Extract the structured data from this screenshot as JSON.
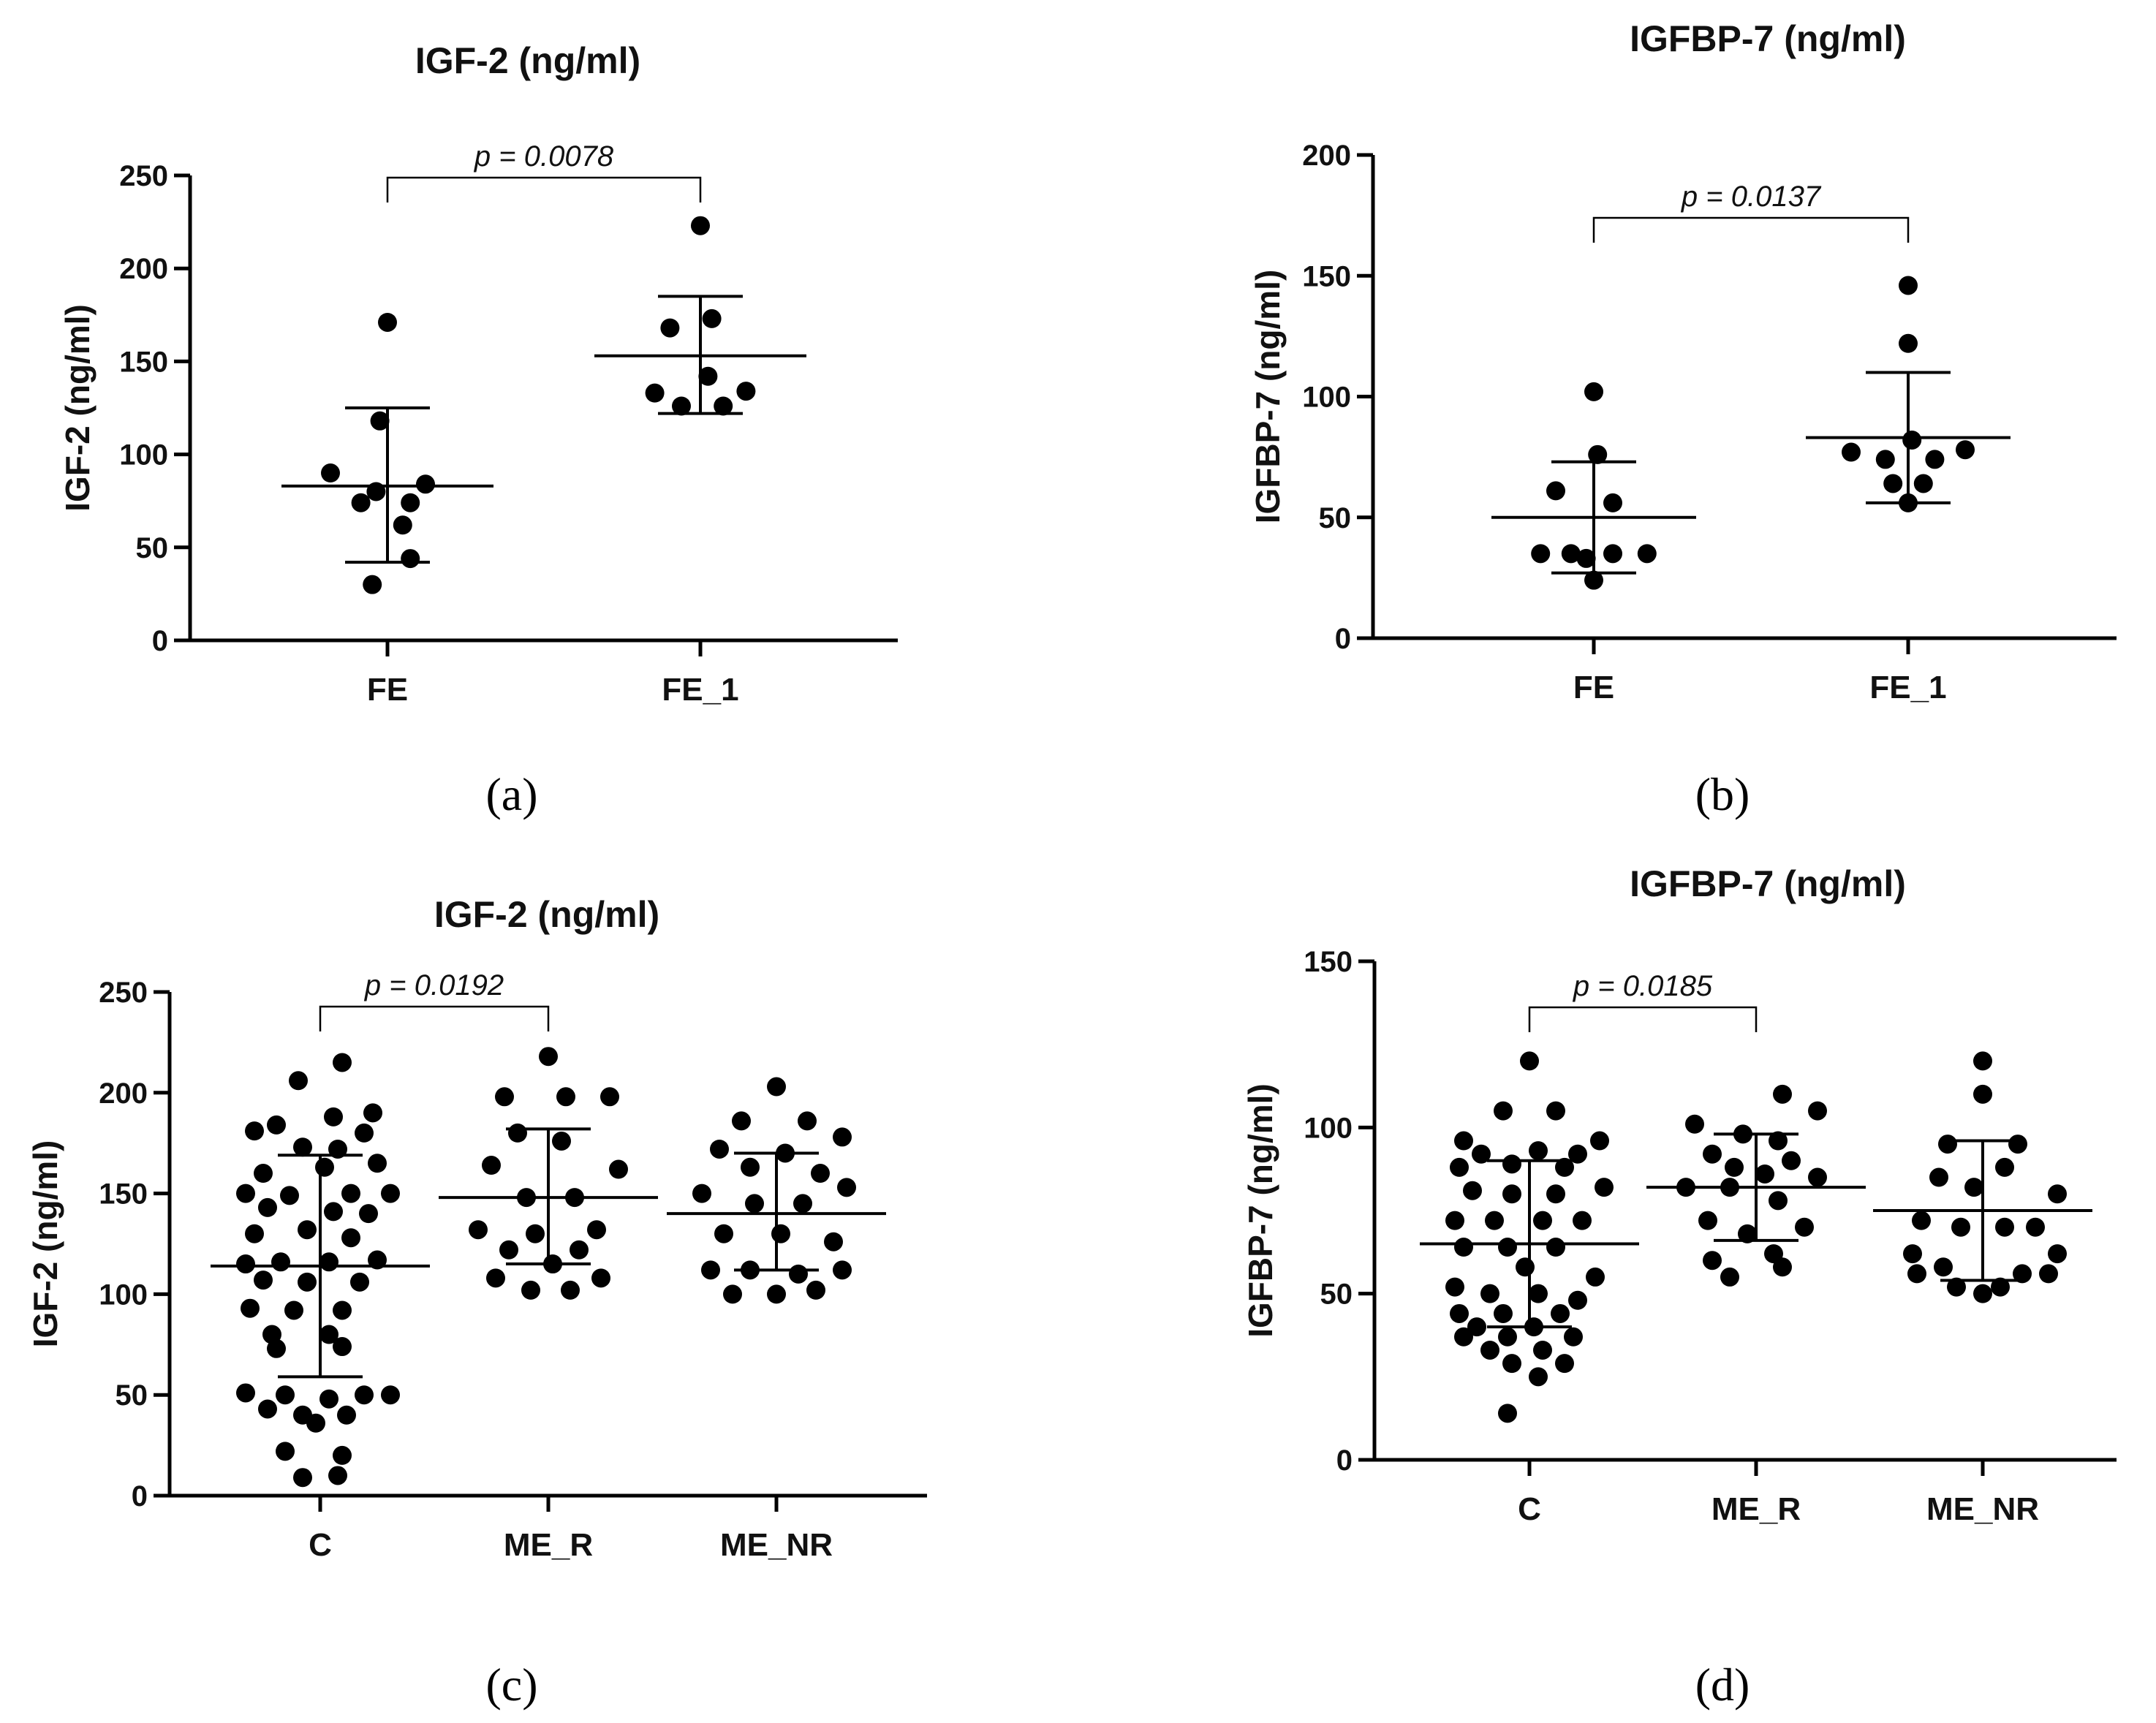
{
  "chart_data": [
    {
      "id": "a",
      "type": "scatter",
      "title": "IGF-2 (ng/ml)",
      "ylabel": "IGF-2 (ng/ml)",
      "caption": "(a)",
      "categories": [
        "FE",
        "FE_1"
      ],
      "ylim": [
        0,
        250
      ],
      "yticks": [
        "0",
        "50",
        "100",
        "150",
        "200",
        "250"
      ],
      "groups": [
        {
          "name": "FE",
          "mean": 83,
          "sd_low": 42,
          "sd_high": 125,
          "points": [
            [
              0,
              171
            ],
            [
              -0.02,
              118
            ],
            [
              -0.15,
              90
            ],
            [
              0.1,
              84
            ],
            [
              -0.03,
              80
            ],
            [
              -0.07,
              74
            ],
            [
              0.06,
              74
            ],
            [
              0.04,
              62
            ],
            [
              0.06,
              44
            ],
            [
              -0.04,
              30
            ]
          ]
        },
        {
          "name": "FE_1",
          "mean": 153,
          "sd_low": 122,
          "sd_high": 185,
          "points": [
            [
              0,
              223
            ],
            [
              0.03,
              173
            ],
            [
              -0.08,
              168
            ],
            [
              0.02,
              142
            ],
            [
              -0.12,
              133
            ],
            [
              0.12,
              134
            ],
            [
              -0.05,
              126
            ],
            [
              0.06,
              126
            ]
          ]
        }
      ],
      "pvalue": {
        "label": "p = 0.0078",
        "between": [
          0,
          1
        ]
      }
    },
    {
      "id": "b",
      "type": "scatter",
      "title": "IGFBP-7 (ng/ml)",
      "ylabel": "IGFBP-7 (ng/ml)",
      "caption": "(b)",
      "categories": [
        "FE",
        "FE_1"
      ],
      "ylim": [
        0,
        200
      ],
      "yticks": [
        "0",
        "50",
        "100",
        "150",
        "200"
      ],
      "groups": [
        {
          "name": "FE",
          "mean": 50,
          "sd_low": 27,
          "sd_high": 73,
          "points": [
            [
              0,
              102
            ],
            [
              0.01,
              76
            ],
            [
              -0.1,
              61
            ],
            [
              0.05,
              56
            ],
            [
              -0.14,
              35
            ],
            [
              -0.06,
              35
            ],
            [
              0.05,
              35
            ],
            [
              0.14,
              35
            ],
            [
              -0.02,
              33
            ],
            [
              0,
              24
            ]
          ]
        },
        {
          "name": "FE_1",
          "mean": 83,
          "sd_low": 56,
          "sd_high": 110,
          "points": [
            [
              0,
              146
            ],
            [
              0,
              122
            ],
            [
              -0.15,
              77
            ],
            [
              0.15,
              78
            ],
            [
              -0.06,
              74
            ],
            [
              0.07,
              74
            ],
            [
              0.01,
              82
            ],
            [
              -0.04,
              64
            ],
            [
              0.04,
              64
            ],
            [
              0,
              56
            ]
          ]
        }
      ],
      "pvalue": {
        "label": "p = 0.0137",
        "between": [
          0,
          1
        ]
      }
    },
    {
      "id": "c",
      "type": "scatter",
      "title": "IGF-2 (ng/ml)",
      "ylabel": "IGF-2 (ng/ml)",
      "caption": "(c)",
      "categories": [
        "C",
        "ME_R",
        "ME_NR"
      ],
      "ylim": [
        0,
        250
      ],
      "yticks": [
        "0",
        "50",
        "100",
        "150",
        "200",
        "250"
      ],
      "groups": [
        {
          "name": "C",
          "mean": 114,
          "sd_low": 59,
          "sd_high": 169,
          "points": [
            [
              0.05,
              215
            ],
            [
              -0.05,
              206
            ],
            [
              0.12,
              190
            ],
            [
              -0.1,
              184
            ],
            [
              0.03,
              188
            ],
            [
              -0.15,
              181
            ],
            [
              0.1,
              180
            ],
            [
              -0.04,
              173
            ],
            [
              0.04,
              172
            ],
            [
              0.13,
              165
            ],
            [
              -0.13,
              160
            ],
            [
              0.01,
              163
            ],
            [
              -0.17,
              150
            ],
            [
              -0.07,
              149
            ],
            [
              0.07,
              150
            ],
            [
              0.16,
              150
            ],
            [
              -0.12,
              143
            ],
            [
              0.03,
              141
            ],
            [
              0.11,
              140
            ],
            [
              -0.15,
              130
            ],
            [
              -0.03,
              132
            ],
            [
              0.07,
              128
            ],
            [
              -0.17,
              115
            ],
            [
              -0.09,
              116
            ],
            [
              0.02,
              116
            ],
            [
              0.13,
              117
            ],
            [
              -0.13,
              107
            ],
            [
              -0.03,
              106
            ],
            [
              0.09,
              106
            ],
            [
              -0.16,
              93
            ],
            [
              -0.06,
              92
            ],
            [
              0.05,
              92
            ],
            [
              -0.11,
              80
            ],
            [
              0.02,
              80
            ],
            [
              -0.1,
              73
            ],
            [
              0.05,
              74
            ],
            [
              -0.17,
              51
            ],
            [
              -0.08,
              50
            ],
            [
              0.02,
              48
            ],
            [
              0.1,
              50
            ],
            [
              0.16,
              50
            ],
            [
              -0.12,
              43
            ],
            [
              -0.04,
              40
            ],
            [
              0.06,
              40
            ],
            [
              -0.01,
              36
            ],
            [
              -0.08,
              22
            ],
            [
              0.05,
              20
            ],
            [
              -0.04,
              9
            ],
            [
              0.04,
              10
            ]
          ]
        },
        {
          "name": "ME_R",
          "mean": 148,
          "sd_low": 115,
          "sd_high": 182,
          "points": [
            [
              0,
              218
            ],
            [
              -0.1,
              198
            ],
            [
              0.04,
              198
            ],
            [
              0.14,
              198
            ],
            [
              -0.07,
              180
            ],
            [
              0.03,
              176
            ],
            [
              -0.13,
              164
            ],
            [
              0.16,
              162
            ],
            [
              -0.05,
              148
            ],
            [
              0.06,
              148
            ],
            [
              -0.16,
              132
            ],
            [
              0.11,
              132
            ],
            [
              -0.03,
              130
            ],
            [
              -0.09,
              122
            ],
            [
              0.07,
              122
            ],
            [
              0.01,
              115
            ],
            [
              -0.12,
              108
            ],
            [
              0.12,
              108
            ],
            [
              -0.04,
              102
            ],
            [
              0.05,
              102
            ]
          ]
        },
        {
          "name": "ME_NR",
          "mean": 140,
          "sd_low": 112,
          "sd_high": 170,
          "points": [
            [
              0,
              203
            ],
            [
              -0.08,
              186
            ],
            [
              0.07,
              186
            ],
            [
              0.15,
              178
            ],
            [
              -0.13,
              172
            ],
            [
              0.02,
              170
            ],
            [
              -0.06,
              163
            ],
            [
              0.1,
              160
            ],
            [
              -0.17,
              150
            ],
            [
              0.16,
              153
            ],
            [
              -0.05,
              145
            ],
            [
              0.06,
              145
            ],
            [
              -0.12,
              130
            ],
            [
              0.01,
              130
            ],
            [
              0.13,
              126
            ],
            [
              -0.15,
              112
            ],
            [
              0.15,
              112
            ],
            [
              -0.06,
              112
            ],
            [
              0.05,
              110
            ],
            [
              -0.1,
              100
            ],
            [
              0,
              100
            ],
            [
              0.09,
              102
            ]
          ]
        }
      ],
      "pvalue": {
        "label": "p = 0.0192",
        "between": [
          0,
          1
        ]
      }
    },
    {
      "id": "d",
      "type": "scatter",
      "title": "IGFBP-7 (ng/ml)",
      "ylabel": "IGFBP-7 (ng/ml)",
      "caption": "(d)",
      "categories": [
        "C",
        "ME_R",
        "ME_NR"
      ],
      "ylim": [
        0,
        150
      ],
      "yticks": [
        "0",
        "50",
        "100",
        "150"
      ],
      "groups": [
        {
          "name": "C",
          "mean": 65,
          "sd_low": 40,
          "sd_high": 90,
          "points": [
            [
              0,
              120
            ],
            [
              -0.06,
              105
            ],
            [
              0.06,
              105
            ],
            [
              -0.15,
              96
            ],
            [
              0.16,
              96
            ],
            [
              -0.11,
              92
            ],
            [
              0.02,
              93
            ],
            [
              0.11,
              92
            ],
            [
              -0.16,
              88
            ],
            [
              -0.04,
              89
            ],
            [
              0.08,
              88
            ],
            [
              0.17,
              82
            ],
            [
              -0.13,
              81
            ],
            [
              -0.04,
              80
            ],
            [
              0.06,
              80
            ],
            [
              -0.17,
              72
            ],
            [
              -0.08,
              72
            ],
            [
              0.03,
              72
            ],
            [
              0.12,
              72
            ],
            [
              -0.15,
              64
            ],
            [
              -0.05,
              64
            ],
            [
              0.06,
              64
            ],
            [
              -0.01,
              58
            ],
            [
              0.15,
              55
            ],
            [
              -0.17,
              52
            ],
            [
              -0.09,
              50
            ],
            [
              0.02,
              50
            ],
            [
              0.11,
              48
            ],
            [
              -0.16,
              44
            ],
            [
              -0.06,
              44
            ],
            [
              0.07,
              44
            ],
            [
              -0.12,
              40
            ],
            [
              0.01,
              40
            ],
            [
              -0.15,
              37
            ],
            [
              -0.05,
              37
            ],
            [
              0.1,
              37
            ],
            [
              -0.09,
              33
            ],
            [
              0.03,
              33
            ],
            [
              0.08,
              29
            ],
            [
              -0.04,
              29
            ],
            [
              0.02,
              25
            ],
            [
              -0.05,
              14
            ]
          ]
        },
        {
          "name": "ME_R",
          "mean": 82,
          "sd_low": 66,
          "sd_high": 98,
          "points": [
            [
              0.06,
              110
            ],
            [
              -0.14,
              101
            ],
            [
              0.14,
              105
            ],
            [
              -0.03,
              98
            ],
            [
              0.05,
              96
            ],
            [
              -0.1,
              92
            ],
            [
              0.08,
              90
            ],
            [
              -0.05,
              88
            ],
            [
              0.02,
              86
            ],
            [
              0.14,
              85
            ],
            [
              -0.16,
              82
            ],
            [
              -0.06,
              82
            ],
            [
              0.05,
              78
            ],
            [
              -0.11,
              72
            ],
            [
              0.11,
              70
            ],
            [
              -0.02,
              68
            ],
            [
              0.04,
              62
            ],
            [
              -0.1,
              60
            ],
            [
              0.06,
              58
            ],
            [
              -0.06,
              55
            ]
          ]
        },
        {
          "name": "ME_NR",
          "mean": 75,
          "sd_low": 54,
          "sd_high": 96,
          "points": [
            [
              0,
              120
            ],
            [
              0,
              110
            ],
            [
              -0.08,
              95
            ],
            [
              0.08,
              95
            ],
            [
              0.05,
              88
            ],
            [
              -0.1,
              85
            ],
            [
              0.17,
              80
            ],
            [
              -0.02,
              82
            ],
            [
              -0.14,
              72
            ],
            [
              0.12,
              70
            ],
            [
              -0.05,
              70
            ],
            [
              0.05,
              70
            ],
            [
              -0.16,
              62
            ],
            [
              0.17,
              62
            ],
            [
              -0.09,
              58
            ],
            [
              0.09,
              56
            ],
            [
              -0.15,
              56
            ],
            [
              0.15,
              56
            ],
            [
              -0.06,
              52
            ],
            [
              0.04,
              52
            ],
            [
              0,
              50
            ]
          ]
        }
      ],
      "pvalue": {
        "label": "p = 0.0185",
        "between": [
          0,
          1
        ]
      }
    }
  ]
}
